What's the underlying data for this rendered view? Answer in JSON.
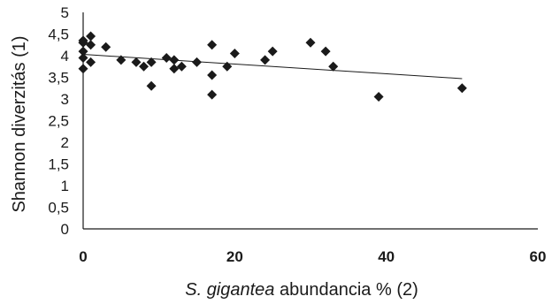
{
  "chart_data": {
    "type": "scatter",
    "ylabel": "Shannon diverzitás (1)",
    "xlabel": {
      "italic": "S. gigantea",
      "rest": " abundancia % (2)"
    },
    "xlim": [
      0,
      60
    ],
    "ylim": [
      0,
      5
    ],
    "xticks": [
      "0",
      "20",
      "40",
      "60"
    ],
    "yticks": [
      "0",
      "0,5",
      "1",
      "1,5",
      "2",
      "2,5",
      "3",
      "3,5",
      "4",
      "4,5",
      "5"
    ],
    "x": [
      0,
      0,
      0,
      0,
      0,
      0,
      1,
      1,
      1,
      3,
      5,
      7,
      8,
      9,
      9,
      11,
      12,
      12,
      13,
      15,
      17,
      17,
      17,
      19,
      20,
      24,
      25,
      30,
      32,
      33,
      39,
      50
    ],
    "y": [
      4.35,
      4.3,
      4.1,
      3.95,
      3.7,
      4.3,
      4.45,
      4.25,
      3.85,
      4.2,
      3.9,
      3.85,
      3.75,
      3.85,
      3.3,
      3.95,
      3.9,
      3.7,
      3.75,
      3.85,
      4.25,
      3.55,
      3.1,
      3.75,
      4.05,
      3.9,
      4.1,
      4.3,
      4.1,
      3.75,
      3.05,
      3.25
    ],
    "trendline": {
      "x": [
        0,
        50
      ],
      "y": [
        4.03,
        3.47
      ]
    },
    "grid": false,
    "legend": "none",
    "colors": {
      "marker": "#1a1a1a",
      "axis": "#1a1a1a"
    }
  }
}
